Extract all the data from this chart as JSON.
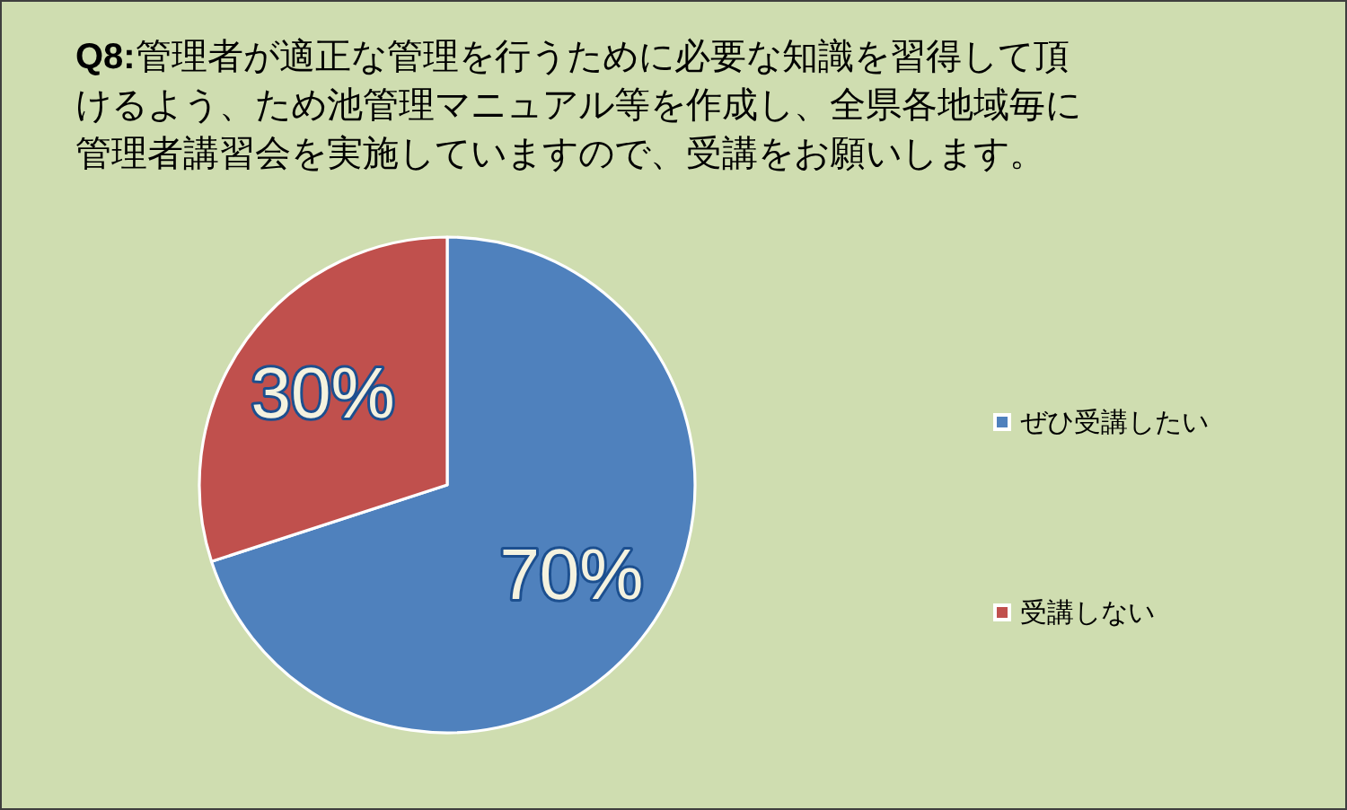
{
  "chart_data": {
    "type": "pie",
    "title": "Q8:管理者が適正な管理を行うために必要な知識を習得して頂けるよう、ため池管理マニュアル等を作成し、全県各地域毎に管理者講習会を実施していますので、受講をお願いします。",
    "categories": [
      "ぜひ受講したい",
      "受講しない"
    ],
    "values": [
      70,
      30
    ],
    "colors": [
      "#4f81bd",
      "#c0504d"
    ],
    "value_labels": [
      "70%",
      "30%"
    ],
    "legend": "right"
  }
}
